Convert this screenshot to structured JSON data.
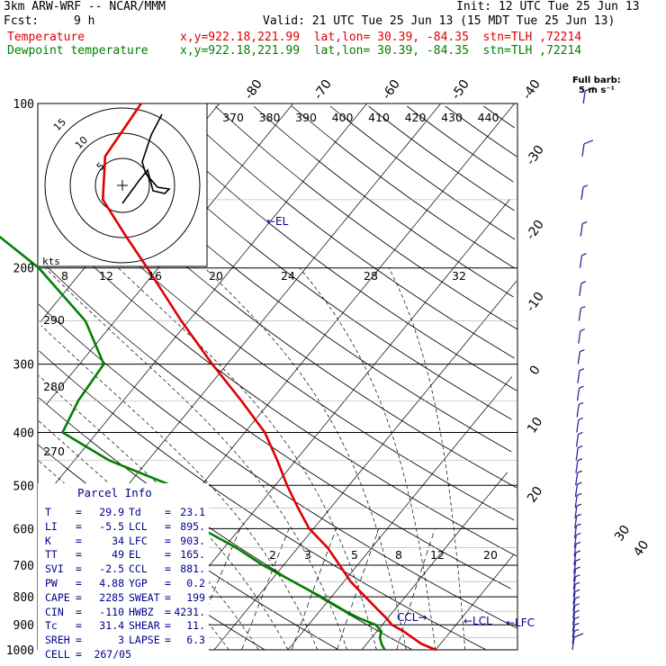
{
  "header": {
    "model": "3km ARW-WRF -- NCAR/MMM",
    "init": "Init: 12 UTC Tue 25 Jun 13",
    "fcst_label": "Fcst:",
    "fcst_value": "9 h",
    "valid": "Valid: 21 UTC Tue 25 Jun 13 (15 MDT Tue 25 Jun 13)",
    "line_temp_name": "Temperature",
    "line_temp_loc": "x,y=922.18,221.99  lat,lon= 30.39, -84.35  stn=TLH ,72214",
    "line_dew_name": "Dewpoint temperature",
    "line_dew_loc": "x,y=922.18,221.99  lat,lon= 30.39, -84.35  stn=TLH ,72214"
  },
  "legend": {
    "full_barb_1": "Full barb:",
    "full_barb_2": "5 m s⁻¹"
  },
  "hodograph": {
    "ring_labels": [
      "5",
      "10",
      "15"
    ],
    "kts_label": "kts"
  },
  "parcel_info": {
    "title": "Parcel Info",
    "rows": [
      {
        "a_lbl": "T",
        "a_val": "29.9",
        "b_lbl": "Td",
        "b_val": "23.1"
      },
      {
        "a_lbl": "LI",
        "a_val": "-5.5",
        "b_lbl": "LCL",
        "b_val": "895."
      },
      {
        "a_lbl": "K",
        "a_val": "34",
        "b_lbl": "LFC",
        "b_val": "903."
      },
      {
        "a_lbl": "TT",
        "a_val": "49",
        "b_lbl": "EL",
        "b_val": "165."
      },
      {
        "a_lbl": "SVI",
        "a_val": "-2.5",
        "b_lbl": "CCL",
        "b_val": "881."
      },
      {
        "a_lbl": "PW",
        "a_val": "4.88",
        "b_lbl": "YGP",
        "b_val": "0.2"
      },
      {
        "a_lbl": "CAPE",
        "a_val": "2285",
        "b_lbl": "SWEAT",
        "b_val": "199"
      },
      {
        "a_lbl": "CIN",
        "a_val": "-110",
        "b_lbl": "HWBZ",
        "b_val": "4231."
      },
      {
        "a_lbl": "Tc",
        "a_val": "31.4",
        "b_lbl": "SHEAR",
        "b_val": "11."
      },
      {
        "a_lbl": "SREH",
        "a_val": "3",
        "b_lbl": "LAPSE",
        "b_val": "6.3"
      }
    ],
    "cell_label": "CELL",
    "cell_value": "267/05"
  },
  "colors": {
    "temperature": "#e00000",
    "dewpoint": "#008000",
    "isobar": "#000000",
    "annot": "#00008b",
    "barb": "#2b2b99"
  },
  "chart_data": {
    "type": "skew-t",
    "ylim_hpa": [
      1000,
      100
    ],
    "pressure_tick_labels": [
      "100",
      "200",
      "300",
      "400",
      "500",
      "600",
      "700",
      "800",
      "900",
      "1000"
    ],
    "isotherm_top_labels": [
      "-80",
      "-70",
      "-60",
      "-50",
      "-40"
    ],
    "isotherm_right_labels": [
      "-30",
      "-20",
      "-10",
      "0",
      "10",
      "20",
      "30",
      "40"
    ],
    "theta_labels_top": [
      "370",
      "380",
      "390",
      "400",
      "410",
      "420",
      "430",
      "440"
    ],
    "theta_labels_left": [
      "290",
      "280",
      "270"
    ],
    "mixing_ratio_labels_mid": [
      "8",
      "12",
      "16",
      "20",
      "24",
      "28",
      "32"
    ],
    "mixing_ratio_labels_low": [
      "2",
      "3",
      "5",
      "8",
      "12",
      "20"
    ],
    "annotations": [
      "EL",
      "LCL",
      "LFC",
      "CCL"
    ],
    "series": [
      {
        "name": "Temperature",
        "p": [
          1000,
          975,
          950,
          925,
          900,
          875,
          850,
          800,
          750,
          700,
          650,
          600,
          550,
          500,
          450,
          400,
          350,
          300,
          250,
          200,
          175,
          150,
          125,
          100
        ],
        "t": [
          30.0,
          27.4,
          25.5,
          23.6,
          21.3,
          19.8,
          18.1,
          14.6,
          10.9,
          7.6,
          4.0,
          -0.6,
          -4.4,
          -8.4,
          -12.5,
          -17.3,
          -24.0,
          -32.0,
          -41.0,
          -51.5,
          -57.9,
          -65.1,
          -69.6,
          -70.6
        ]
      },
      {
        "name": "Dewpoint temperature",
        "p": [
          1000,
          975,
          950,
          925,
          900,
          875,
          850,
          800,
          750,
          700,
          650,
          600,
          550,
          500,
          450,
          400,
          350,
          300,
          250,
          200,
          175,
          150,
          125,
          100
        ],
        "t": [
          23.1,
          22.0,
          21.1,
          20.6,
          19.1,
          16.1,
          13.5,
          8.6,
          3.1,
          -2.8,
          -8.4,
          -15.2,
          -19.2,
          -24.1,
          -35.3,
          -44.7,
          -46.1,
          -46.7,
          -54.0,
          -66.2,
          -75.1,
          -80.6,
          -89.0,
          -91.7
        ]
      }
    ],
    "wind_barbs": {
      "p": [
        1000,
        975,
        950,
        925,
        900,
        875,
        850,
        825,
        800,
        775,
        750,
        725,
        700,
        675,
        650,
        625,
        600,
        575,
        550,
        525,
        500,
        475,
        450,
        425,
        400,
        375,
        350,
        325,
        300,
        275,
        250,
        225,
        200,
        175,
        150,
        125,
        100
      ],
      "speed_ms": [
        5,
        4,
        4,
        3,
        3,
        3,
        3,
        3,
        3,
        3,
        3,
        2,
        2,
        2,
        2,
        2,
        2,
        2,
        2,
        2,
        2,
        3,
        3,
        3,
        3,
        3,
        3,
        3,
        3,
        3,
        3,
        3,
        4,
        4,
        4,
        5,
        5
      ]
    }
  }
}
